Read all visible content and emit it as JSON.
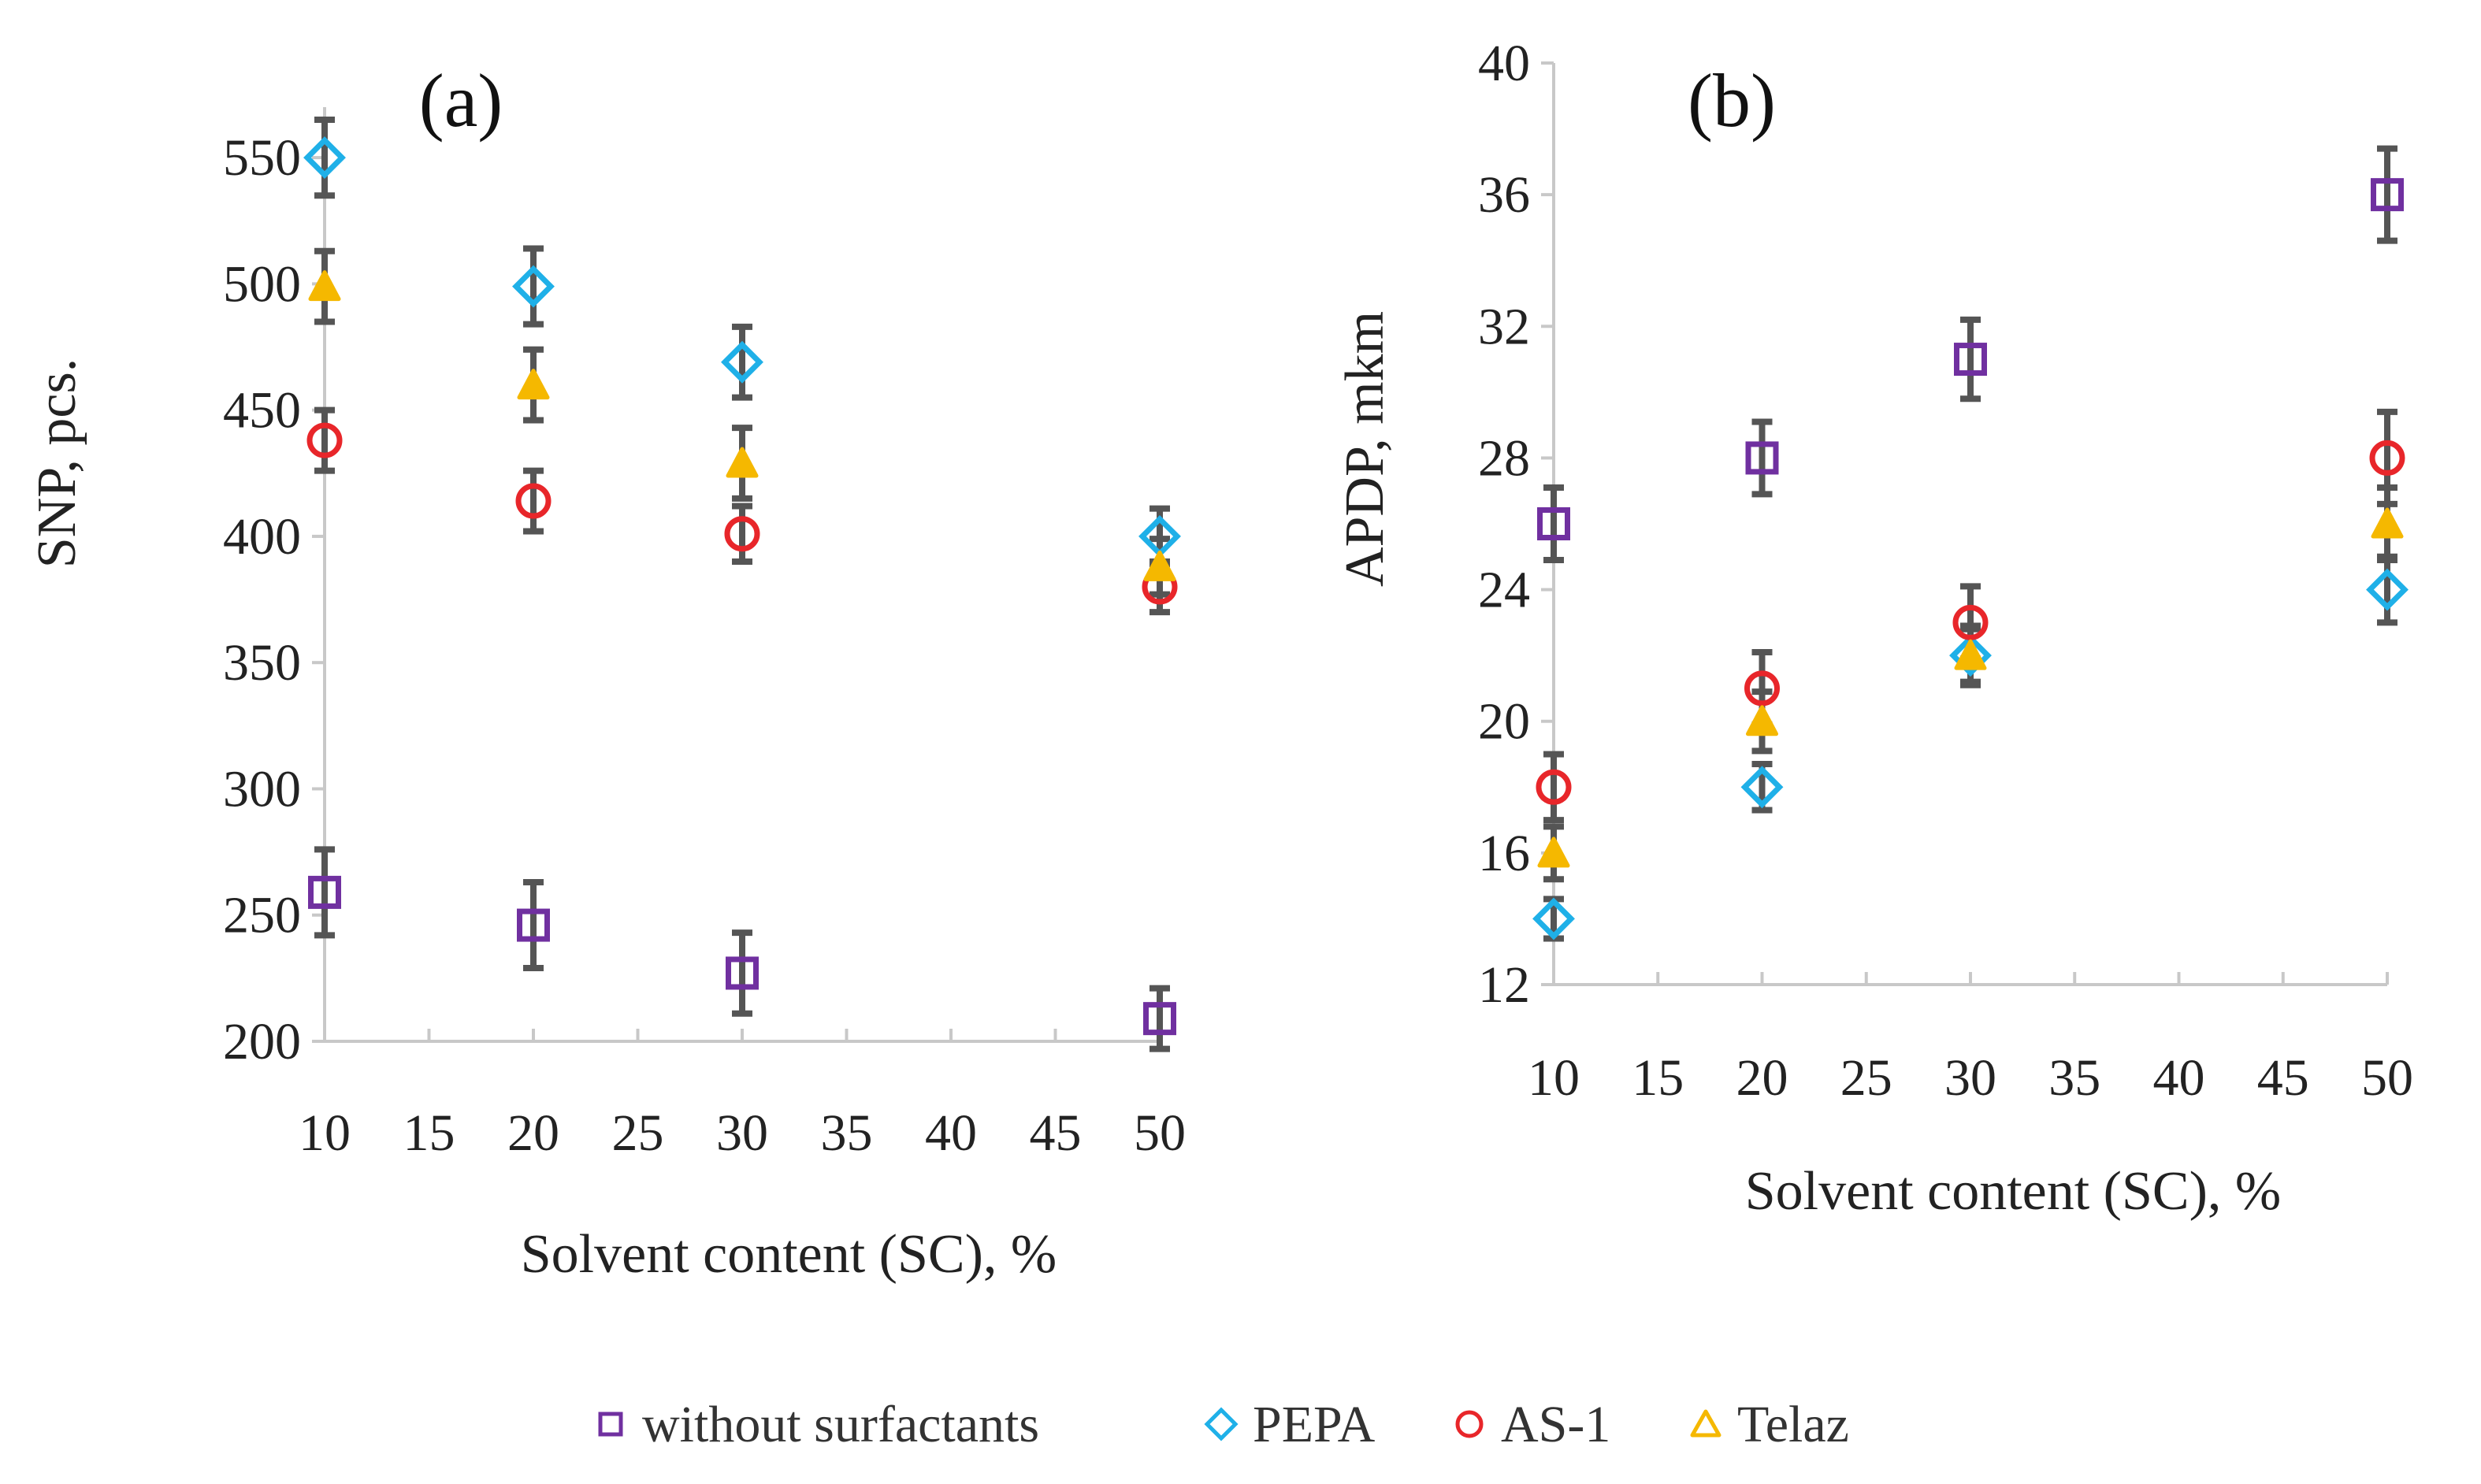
{
  "chart_data": [
    {
      "type": "scatter",
      "title": "(a)",
      "xlabel": "Solvent content (SC), %",
      "ylabel": "SNP, pcs.",
      "xlim": [
        10,
        50
      ],
      "ylim": [
        200,
        570
      ],
      "xticks": [
        10,
        15,
        20,
        25,
        30,
        35,
        40,
        45,
        50
      ],
      "yticks": [
        200,
        250,
        300,
        350,
        400,
        450,
        500,
        550
      ],
      "x": [
        10,
        20,
        30,
        50
      ],
      "series": [
        {
          "key": "without",
          "name": "without surfactants",
          "values": [
            259,
            246,
            227,
            209
          ],
          "errors": [
            17,
            17,
            16,
            12
          ]
        },
        {
          "key": "pepa",
          "name": "PEPA",
          "values": [
            550,
            499,
            469,
            400
          ],
          "errors": [
            15,
            15,
            14,
            11
          ]
        },
        {
          "key": "as1",
          "name": "AS-1",
          "values": [
            438,
            414,
            401,
            380
          ],
          "errors": [
            12,
            12,
            11,
            10
          ]
        },
        {
          "key": "telaz",
          "name": "Telaz",
          "values": [
            499,
            460,
            429,
            388
          ],
          "errors": [
            14,
            14,
            14,
            11
          ]
        }
      ]
    },
    {
      "type": "scatter",
      "title": "(b)",
      "xlabel": "Solvent content (SC), %",
      "ylabel": "APDP, mkm",
      "xlim": [
        10,
        50
      ],
      "ylim": [
        12,
        40
      ],
      "xticks": [
        10,
        15,
        20,
        25,
        30,
        35,
        40,
        45,
        50
      ],
      "yticks": [
        12,
        16,
        20,
        24,
        28,
        32,
        36,
        40
      ],
      "x": [
        10,
        20,
        30,
        50
      ],
      "series": [
        {
          "key": "without",
          "name": "without surfactants",
          "values": [
            26,
            28,
            31,
            36
          ],
          "errors": [
            1.1,
            1.1,
            1.2,
            1.4
          ]
        },
        {
          "key": "pepa",
          "name": "PEPA",
          "values": [
            14,
            18,
            22,
            24
          ],
          "errors": [
            0.6,
            0.7,
            0.8,
            1.0
          ]
        },
        {
          "key": "as1",
          "name": "AS-1",
          "values": [
            18,
            21,
            23,
            28
          ],
          "errors": [
            1.0,
            1.1,
            1.1,
            1.4
          ]
        },
        {
          "key": "telaz",
          "name": "Telaz",
          "values": [
            16,
            20,
            22,
            26
          ],
          "errors": [
            0.8,
            0.9,
            0.9,
            1.1
          ]
        }
      ]
    }
  ],
  "styles": {
    "without": {
      "color": "#7030a0",
      "marker": "square"
    },
    "pepa": {
      "color": "#1fb0e8",
      "marker": "diamond"
    },
    "as1": {
      "color": "#e8262a",
      "marker": "circle"
    },
    "telaz": {
      "color": "#f5b800",
      "marker": "triangle"
    }
  },
  "legend": {
    "position": "bottom-center",
    "items": [
      {
        "key": "without",
        "label": "without surfactants"
      },
      {
        "key": "pepa",
        "label": "PEPA"
      },
      {
        "key": "as1",
        "label": "AS-1"
      },
      {
        "key": "telaz",
        "label": "Telaz"
      }
    ]
  }
}
